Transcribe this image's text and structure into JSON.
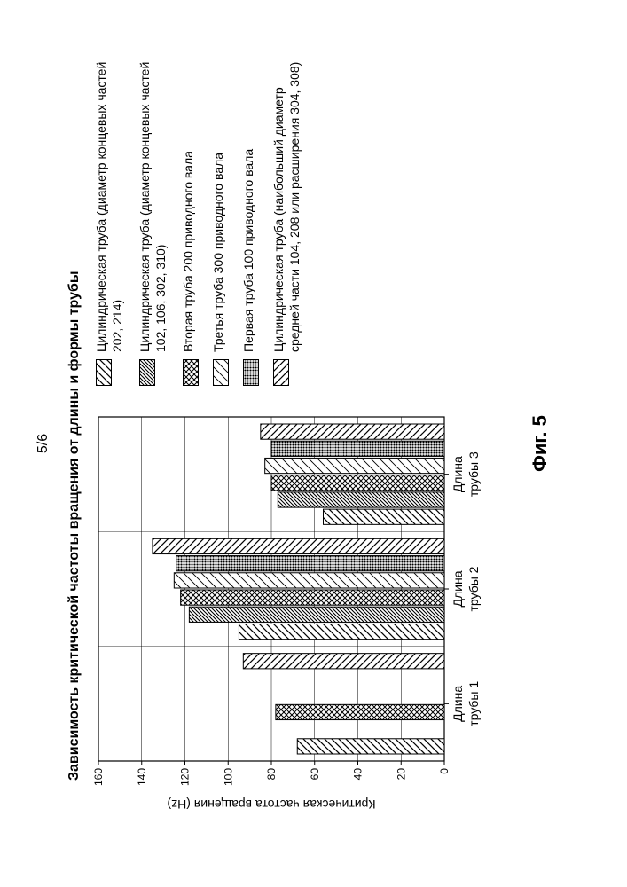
{
  "page_number": "5/6",
  "figure_label": "Фиг. 5",
  "chart": {
    "type": "bar",
    "title": "Зависимость критической частоты вращения от длины и формы трубы",
    "ylabel": "Критическая частота вращения (Hz)",
    "ylim": [
      0,
      160
    ],
    "ytick_step": 20,
    "yticks": [
      0,
      20,
      40,
      60,
      80,
      100,
      120,
      140,
      160
    ],
    "plot_background": "#ffffff",
    "axis_color": "#000000",
    "grid_color": "#000000",
    "label_fontsize": 14,
    "title_fontsize": 16,
    "tick_fontsize": 12,
    "bar_border_color": "#000000",
    "series": [
      {
        "id": "s1",
        "label": "Цилиндрическая труба (диаметр концевых частей 202, 214)",
        "pattern": "diag-ne"
      },
      {
        "id": "s2",
        "label": "Цилиндрическая труба (диаметр концевых частей 102, 106, 302, 310)",
        "pattern": "diag-dense"
      },
      {
        "id": "s3",
        "label": "Вторая труба 200 приводного вала",
        "pattern": "crosshatch"
      },
      {
        "id": "s4",
        "label": "Третья труба 300 приводного вала",
        "pattern": "diag-ne-thin"
      },
      {
        "id": "s5",
        "label": "Первая труба 100 приводного вала",
        "pattern": "dots-dense"
      },
      {
        "id": "s6",
        "label": "Цилиндрическая труба (наибольший диаметр средней части 104, 208 или расширения 304, 308)",
        "pattern": "diag-nw"
      }
    ],
    "groups": [
      {
        "label": "Длина трубы 1",
        "values": {
          "s1": 68,
          "s2": null,
          "s3": 78,
          "s4": null,
          "s5": null,
          "s6": 93
        }
      },
      {
        "label": "Длина трубы 2",
        "values": {
          "s1": 95,
          "s2": 118,
          "s3": 122,
          "s4": 125,
          "s5": 124,
          "s6": 135
        }
      },
      {
        "label": "Длина трубы 3",
        "values": {
          "s1": 56,
          "s2": 77,
          "s3": 80,
          "s4": 83,
          "s5": 80,
          "s6": 85
        }
      }
    ]
  }
}
